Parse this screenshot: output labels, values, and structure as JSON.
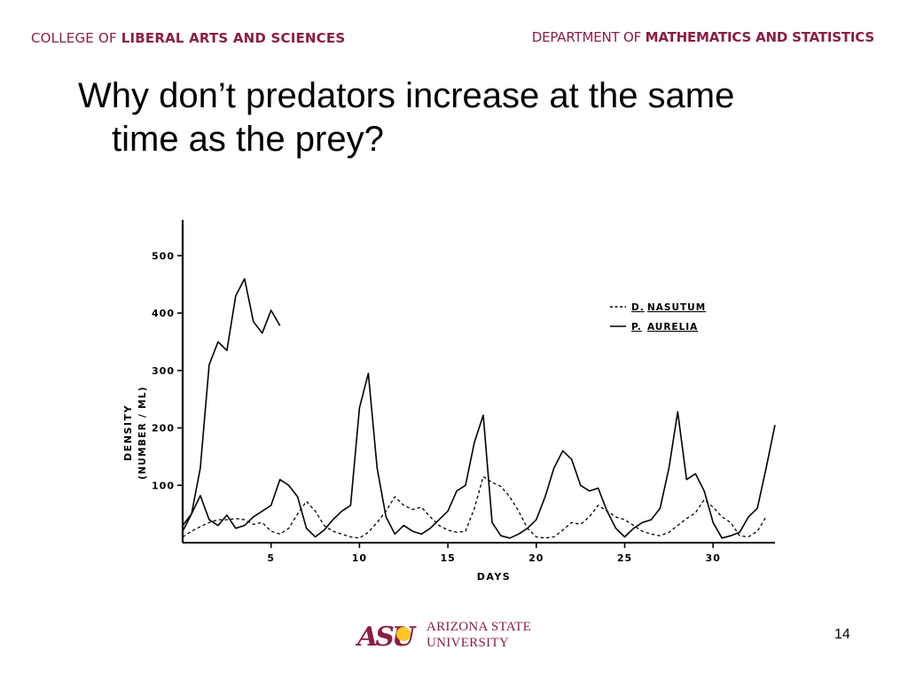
{
  "header": {
    "left_prefix": "COLLEGE OF ",
    "left_strong": "LIBERAL ARTS AND SCIENCES",
    "right_prefix": "DEPARTMENT OF ",
    "right_strong": "MATHEMATICS AND STATISTICS"
  },
  "slide": {
    "title_line1": "Why don’t predators increase at the same",
    "title_line2": "time as the prey?",
    "page_number": "14"
  },
  "logo": {
    "mark": "ASU",
    "line1": "ARIZONA STATE",
    "line2": "UNIVERSITY"
  },
  "colors": {
    "brand_maroon": "#8c1d40",
    "brand_gold": "#ffc627",
    "ink": "#000000"
  },
  "chart_data": {
    "type": "line",
    "xlabel": "DAYS",
    "ylabel": "DENSITY",
    "ylabel_sub": "(NUMBER / ML)",
    "xlim": [
      0,
      33.5
    ],
    "ylim": [
      0,
      550
    ],
    "x_ticks": [
      5,
      10,
      15,
      20,
      25,
      30
    ],
    "y_ticks": [
      100,
      200,
      300,
      400,
      500
    ],
    "legend_position": "top-right",
    "series": [
      {
        "name_prefix": "D.",
        "name": "NASUTUM",
        "style": "dashed",
        "points": [
          [
            0,
            10
          ],
          [
            0.5,
            20
          ],
          [
            1,
            28
          ],
          [
            1.5,
            35
          ],
          [
            2,
            40
          ],
          [
            2.5,
            40
          ],
          [
            3,
            42
          ],
          [
            3.5,
            40
          ],
          [
            4,
            32
          ],
          [
            4.5,
            35
          ],
          [
            5,
            20
          ],
          [
            5.5,
            15
          ],
          [
            6,
            25
          ],
          [
            6.5,
            50
          ],
          [
            7,
            72
          ],
          [
            7.5,
            55
          ],
          [
            8,
            30
          ],
          [
            8.5,
            20
          ],
          [
            9,
            15
          ],
          [
            9.5,
            10
          ],
          [
            10,
            8
          ],
          [
            10.5,
            18
          ],
          [
            11,
            35
          ],
          [
            11.5,
            55
          ],
          [
            12,
            80
          ],
          [
            12.5,
            65
          ],
          [
            13,
            58
          ],
          [
            13.5,
            62
          ],
          [
            14,
            45
          ],
          [
            14.5,
            30
          ],
          [
            15,
            22
          ],
          [
            15.5,
            18
          ],
          [
            16,
            20
          ],
          [
            16.5,
            60
          ],
          [
            17,
            115
          ],
          [
            17.5,
            105
          ],
          [
            18,
            98
          ],
          [
            18.5,
            80
          ],
          [
            19,
            55
          ],
          [
            19.5,
            25
          ],
          [
            20,
            10
          ],
          [
            20.5,
            8
          ],
          [
            21,
            10
          ],
          [
            21.5,
            22
          ],
          [
            22,
            35
          ],
          [
            22.5,
            32
          ],
          [
            23,
            45
          ],
          [
            23.5,
            65
          ],
          [
            24,
            55
          ],
          [
            24.5,
            45
          ],
          [
            25,
            40
          ],
          [
            25.5,
            30
          ],
          [
            26,
            20
          ],
          [
            26.5,
            15
          ],
          [
            27,
            12
          ],
          [
            27.5,
            18
          ],
          [
            28,
            30
          ],
          [
            28.5,
            42
          ],
          [
            29,
            52
          ],
          [
            29.5,
            75
          ],
          [
            30,
            62
          ],
          [
            30.5,
            45
          ],
          [
            31,
            35
          ],
          [
            31.5,
            12
          ],
          [
            32,
            10
          ],
          [
            32.5,
            20
          ],
          [
            33,
            45
          ]
        ]
      },
      {
        "name_prefix": "P.",
        "name": "AURELIA",
        "style": "solid",
        "points": [
          [
            0,
            20
          ],
          [
            0.5,
            50
          ],
          [
            1,
            130
          ],
          [
            1.5,
            310
          ],
          [
            2,
            350
          ],
          [
            2.5,
            335
          ],
          [
            3,
            430
          ],
          [
            3.5,
            460
          ],
          [
            4,
            385
          ],
          [
            4.5,
            365
          ],
          [
            5,
            405
          ],
          [
            5.5,
            378
          ],
          [
            0,
            30
          ],
          [
            0.5,
            50
          ],
          [
            1,
            82
          ],
          [
            1.5,
            40
          ],
          [
            2,
            30
          ],
          [
            2.5,
            48
          ],
          [
            3,
            25
          ],
          [
            3.5,
            30
          ],
          [
            4,
            45
          ],
          [
            4.5,
            55
          ],
          [
            5,
            65
          ],
          [
            5.5,
            110
          ],
          [
            6,
            100
          ],
          [
            6.5,
            80
          ],
          [
            7,
            25
          ],
          [
            7.5,
            10
          ],
          [
            8,
            22
          ],
          [
            8.5,
            40
          ],
          [
            9,
            55
          ],
          [
            9.5,
            65
          ],
          [
            10,
            235
          ],
          [
            10.5,
            295
          ],
          [
            11,
            130
          ],
          [
            11.5,
            45
          ],
          [
            12,
            15
          ],
          [
            12.5,
            30
          ],
          [
            13,
            20
          ],
          [
            13.5,
            15
          ],
          [
            14,
            25
          ],
          [
            14.5,
            40
          ],
          [
            15,
            55
          ],
          [
            15.5,
            90
          ],
          [
            16,
            100
          ],
          [
            16.5,
            175
          ],
          [
            17,
            222
          ],
          [
            17.5,
            35
          ],
          [
            18,
            12
          ],
          [
            18.5,
            8
          ],
          [
            19,
            15
          ],
          [
            19.5,
            25
          ],
          [
            20,
            40
          ],
          [
            20.5,
            80
          ],
          [
            21,
            130
          ],
          [
            21.5,
            160
          ],
          [
            22,
            145
          ],
          [
            22.5,
            100
          ],
          [
            23,
            90
          ],
          [
            23.5,
            95
          ],
          [
            24,
            55
          ],
          [
            24.5,
            25
          ],
          [
            25,
            10
          ],
          [
            25.5,
            25
          ],
          [
            26,
            35
          ],
          [
            26.5,
            40
          ],
          [
            27,
            60
          ],
          [
            27.5,
            130
          ],
          [
            28,
            228
          ],
          [
            28.5,
            110
          ],
          [
            29,
            120
          ],
          [
            29.5,
            90
          ],
          [
            30,
            35
          ],
          [
            30.5,
            8
          ],
          [
            31,
            12
          ],
          [
            31.5,
            18
          ],
          [
            32,
            45
          ],
          [
            32.5,
            60
          ],
          [
            33,
            130
          ],
          [
            33.5,
            205
          ]
        ]
      }
    ]
  }
}
